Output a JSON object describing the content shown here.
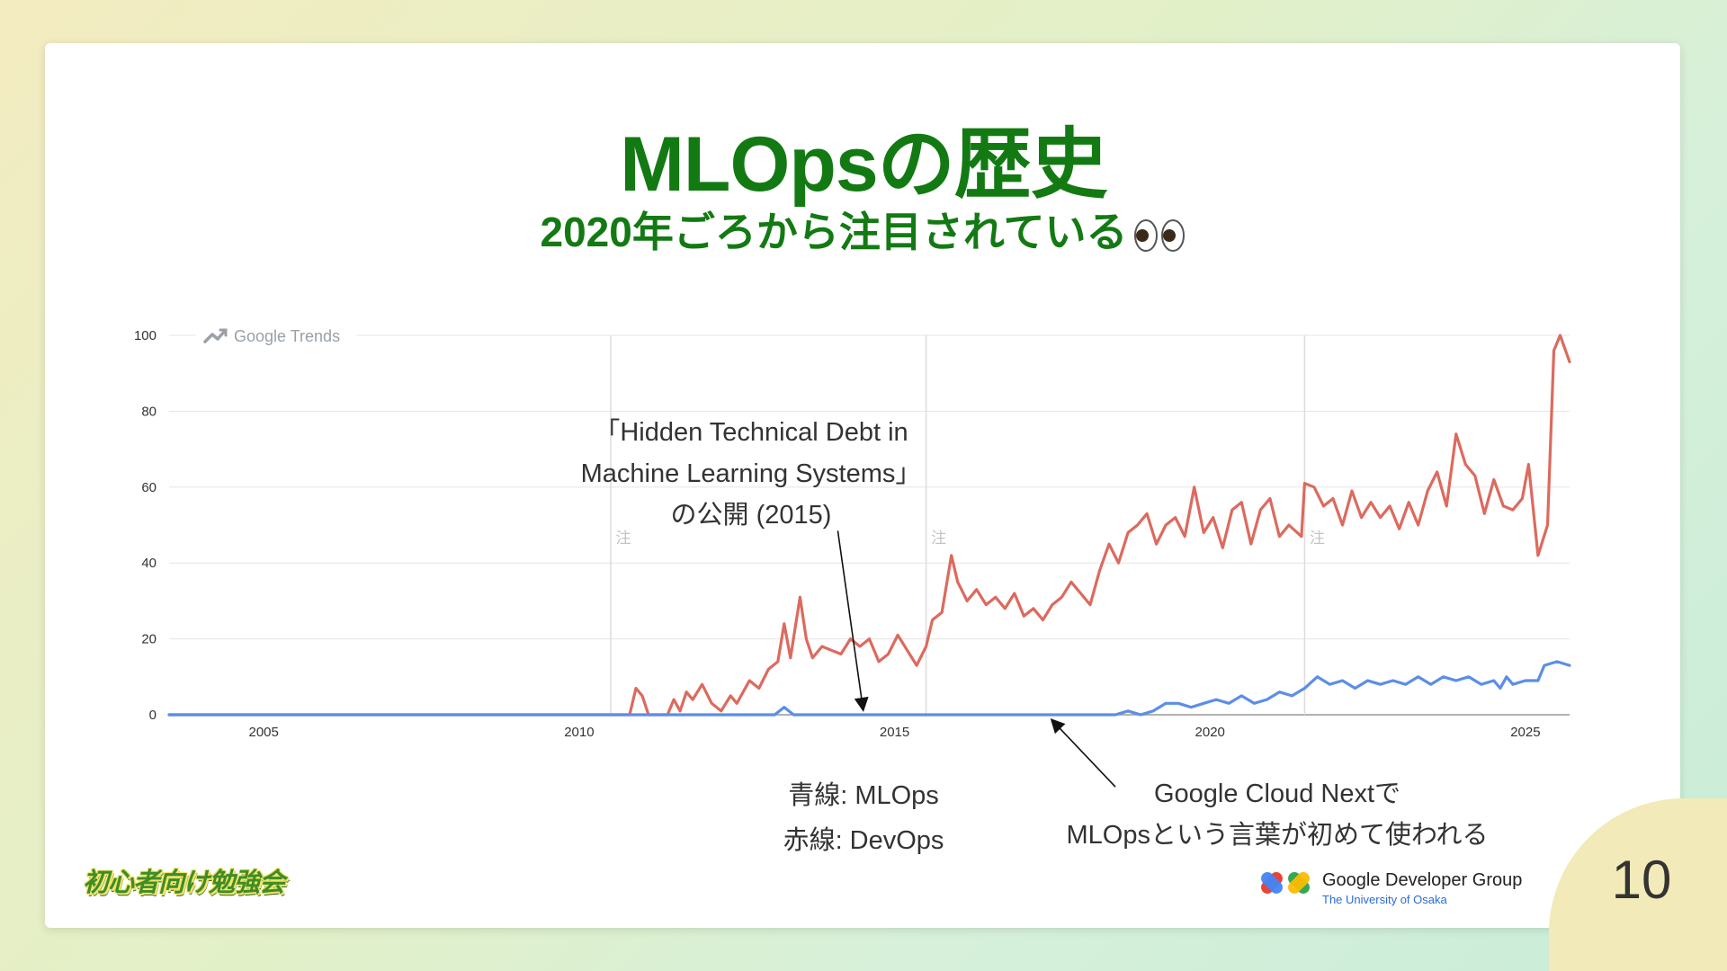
{
  "slide": {
    "title": "MLOpsの歴史",
    "subtitle": "2020年ごろから注目されている",
    "page_number": "10"
  },
  "annotations": {
    "paper_lines": [
      "「Hidden Technical Debt in",
      "Machine Learning Systems」",
      "の公開 (2015)"
    ],
    "legend_lines": [
      "青線: MLOps",
      "赤線: DevOps"
    ],
    "gcn_lines": [
      "Google Cloud Nextで",
      "MLOpsという言葉が初めて使われる"
    ]
  },
  "footer": {
    "gdg_name": "Google Developer Group",
    "gdg_sub": "The University of Osaka",
    "study_logo": "初心者向け勉強会"
  },
  "colors": {
    "title": "#137a13",
    "mlops": "#5b8ee6",
    "devops": "#dc6a5e",
    "grid": "#e6e6e6"
  },
  "chart_data": {
    "type": "line",
    "source_label": "Google Trends",
    "xlim": [
      2004.0,
      2026.2
    ],
    "ylim": [
      0,
      100
    ],
    "x_ticks": [
      "2005",
      "2010",
      "2015",
      "2020",
      "2025"
    ],
    "y_ticks": [
      "0",
      "20",
      "40",
      "60",
      "80",
      "100"
    ],
    "note_marker": "注",
    "note_x": [
      2011.0,
      2016.0,
      2022.0
    ],
    "series": [
      {
        "name": "MLOps",
        "color": "#5b8ee6",
        "points": [
          [
            2004.0,
            0
          ],
          [
            2013.6,
            0
          ],
          [
            2013.75,
            2
          ],
          [
            2013.9,
            0
          ],
          [
            2019.0,
            0
          ],
          [
            2019.2,
            1
          ],
          [
            2019.4,
            0
          ],
          [
            2019.6,
            1
          ],
          [
            2019.8,
            3
          ],
          [
            2020.0,
            3
          ],
          [
            2020.2,
            2
          ],
          [
            2020.4,
            3
          ],
          [
            2020.6,
            4
          ],
          [
            2020.8,
            3
          ],
          [
            2021.0,
            5
          ],
          [
            2021.2,
            3
          ],
          [
            2021.4,
            4
          ],
          [
            2021.6,
            6
          ],
          [
            2021.8,
            5
          ],
          [
            2022.0,
            7
          ],
          [
            2022.2,
            10
          ],
          [
            2022.4,
            8
          ],
          [
            2022.6,
            9
          ],
          [
            2022.8,
            7
          ],
          [
            2023.0,
            9
          ],
          [
            2023.2,
            8
          ],
          [
            2023.4,
            9
          ],
          [
            2023.6,
            8
          ],
          [
            2023.8,
            10
          ],
          [
            2024.0,
            8
          ],
          [
            2024.2,
            10
          ],
          [
            2024.4,
            9
          ],
          [
            2024.6,
            10
          ],
          [
            2024.8,
            8
          ],
          [
            2025.0,
            9
          ],
          [
            2025.1,
            7
          ],
          [
            2025.2,
            10
          ],
          [
            2025.3,
            8
          ],
          [
            2025.5,
            9
          ],
          [
            2025.7,
            9
          ],
          [
            2025.8,
            13
          ],
          [
            2026.0,
            14
          ],
          [
            2026.2,
            13
          ]
        ]
      },
      {
        "name": "DevOps",
        "color": "#dc6a5e",
        "points": [
          [
            2004.0,
            0
          ],
          [
            2011.3,
            0
          ],
          [
            2011.4,
            7
          ],
          [
            2011.5,
            5
          ],
          [
            2011.6,
            0
          ],
          [
            2011.9,
            0
          ],
          [
            2012.0,
            4
          ],
          [
            2012.1,
            1
          ],
          [
            2012.2,
            6
          ],
          [
            2012.3,
            4
          ],
          [
            2012.45,
            8
          ],
          [
            2012.6,
            3
          ],
          [
            2012.75,
            1
          ],
          [
            2012.9,
            5
          ],
          [
            2013.0,
            3
          ],
          [
            2013.2,
            9
          ],
          [
            2013.35,
            7
          ],
          [
            2013.5,
            12
          ],
          [
            2013.65,
            14
          ],
          [
            2013.75,
            24
          ],
          [
            2013.85,
            15
          ],
          [
            2014.0,
            31
          ],
          [
            2014.1,
            20
          ],
          [
            2014.2,
            15
          ],
          [
            2014.35,
            18
          ],
          [
            2014.5,
            17
          ],
          [
            2014.65,
            16
          ],
          [
            2014.8,
            20
          ],
          [
            2014.95,
            18
          ],
          [
            2015.1,
            20
          ],
          [
            2015.25,
            14
          ],
          [
            2015.4,
            16
          ],
          [
            2015.55,
            21
          ],
          [
            2015.7,
            17
          ],
          [
            2015.85,
            13
          ],
          [
            2016.0,
            18
          ],
          [
            2016.1,
            25
          ],
          [
            2016.25,
            27
          ],
          [
            2016.4,
            42
          ],
          [
            2016.5,
            35
          ],
          [
            2016.65,
            30
          ],
          [
            2016.8,
            33
          ],
          [
            2016.95,
            29
          ],
          [
            2017.1,
            31
          ],
          [
            2017.25,
            28
          ],
          [
            2017.4,
            32
          ],
          [
            2017.55,
            26
          ],
          [
            2017.7,
            28
          ],
          [
            2017.85,
            25
          ],
          [
            2018.0,
            29
          ],
          [
            2018.15,
            31
          ],
          [
            2018.3,
            35
          ],
          [
            2018.45,
            32
          ],
          [
            2018.6,
            29
          ],
          [
            2018.75,
            38
          ],
          [
            2018.9,
            45
          ],
          [
            2019.05,
            40
          ],
          [
            2019.2,
            48
          ],
          [
            2019.35,
            50
          ],
          [
            2019.5,
            53
          ],
          [
            2019.65,
            45
          ],
          [
            2019.8,
            50
          ],
          [
            2019.95,
            52
          ],
          [
            2020.1,
            47
          ],
          [
            2020.25,
            60
          ],
          [
            2020.4,
            48
          ],
          [
            2020.55,
            52
          ],
          [
            2020.7,
            44
          ],
          [
            2020.85,
            54
          ],
          [
            2021.0,
            56
          ],
          [
            2021.15,
            45
          ],
          [
            2021.3,
            54
          ],
          [
            2021.45,
            57
          ],
          [
            2021.6,
            47
          ],
          [
            2021.75,
            50
          ],
          [
            2021.95,
            47
          ],
          [
            2022.0,
            61
          ],
          [
            2022.15,
            60
          ],
          [
            2022.3,
            55
          ],
          [
            2022.45,
            57
          ],
          [
            2022.6,
            50
          ],
          [
            2022.75,
            59
          ],
          [
            2022.9,
            52
          ],
          [
            2023.05,
            56
          ],
          [
            2023.2,
            52
          ],
          [
            2023.35,
            55
          ],
          [
            2023.5,
            49
          ],
          [
            2023.65,
            56
          ],
          [
            2023.8,
            50
          ],
          [
            2023.95,
            59
          ],
          [
            2024.1,
            64
          ],
          [
            2024.25,
            55
          ],
          [
            2024.4,
            74
          ],
          [
            2024.55,
            66
          ],
          [
            2024.7,
            63
          ],
          [
            2024.85,
            53
          ],
          [
            2025.0,
            62
          ],
          [
            2025.15,
            55
          ],
          [
            2025.3,
            54
          ],
          [
            2025.45,
            57
          ],
          [
            2025.55,
            66
          ],
          [
            2025.7,
            42
          ],
          [
            2025.85,
            50
          ],
          [
            2025.95,
            96
          ],
          [
            2026.05,
            100
          ],
          [
            2026.2,
            93
          ]
        ]
      }
    ],
    "callouts": [
      {
        "id": "paper",
        "from": [
          2014.6,
          48.5
        ],
        "to": [
          2015.0,
          1.5
        ]
      },
      {
        "id": "gcn",
        "from": [
          2019.0,
          -19
        ],
        "to": [
          2018.0,
          -1.5
        ]
      }
    ]
  }
}
